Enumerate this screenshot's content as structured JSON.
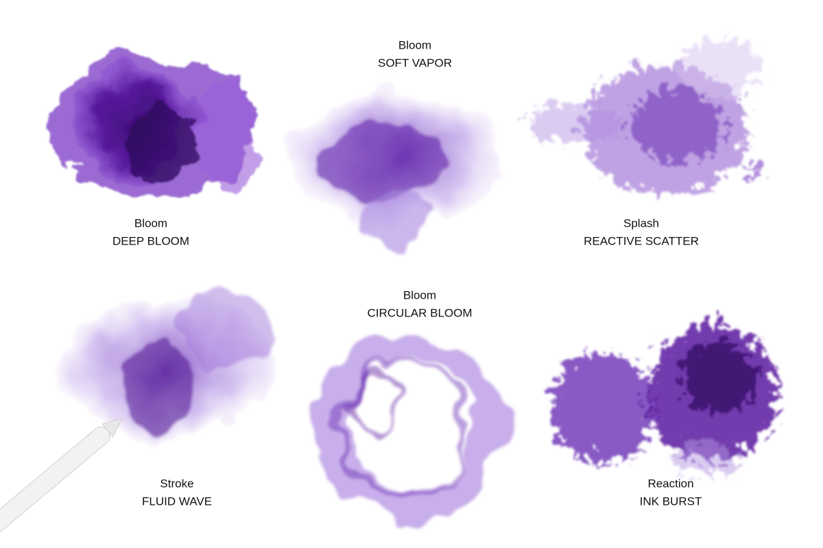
{
  "items": [
    {
      "category": "Bloom",
      "name": "DEEP BLOOM"
    },
    {
      "category": "Bloom",
      "name": "SOFT VAPOR"
    },
    {
      "category": "Splash",
      "name": "REACTIVE SCATTER"
    },
    {
      "category": "Stroke",
      "name": "FLUID WAVE"
    },
    {
      "category": "Bloom",
      "name": "CIRCULAR BLOOM"
    },
    {
      "category": "Reaction",
      "name": "INK BURST"
    }
  ]
}
